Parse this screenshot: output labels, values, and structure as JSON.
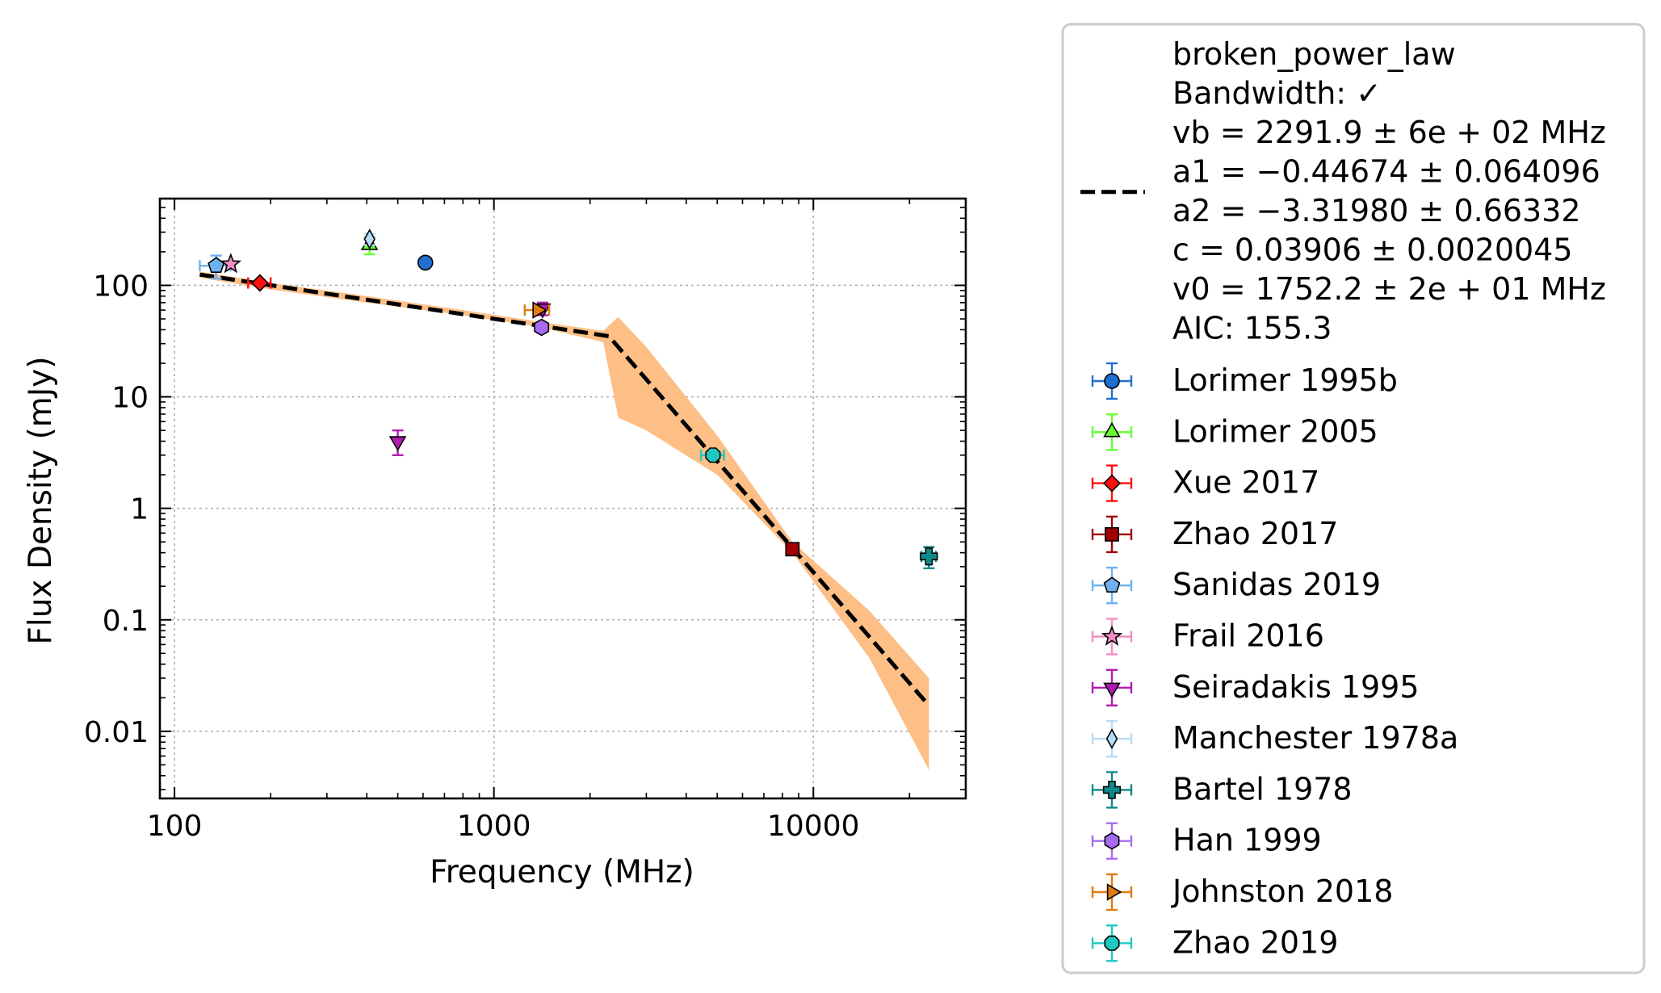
{
  "chart_data": {
    "type": "scatter",
    "xlabel": "Frequency (MHz)",
    "ylabel": "Flux Density (mJy)",
    "xscale": "log",
    "yscale": "log",
    "xlim": [
      90,
      30000
    ],
    "ylim": [
      0.0025,
      600
    ],
    "xticks": [
      100,
      1000,
      10000
    ],
    "xtick_labels": [
      "100",
      "1000",
      "10000"
    ],
    "yticks": [
      0.01,
      0.1,
      1,
      10,
      100
    ],
    "ytick_labels": [
      "0.01",
      "0.1",
      "1",
      "10",
      "100"
    ],
    "grid": true,
    "legend_placement": "outside-right",
    "fit": {
      "name": "broken_power_law",
      "legend_lines": [
        "broken_power_law",
        "Bandwidth: ✓",
        "vb = 2291.9 ± 6e + 02 MHz",
        "a1 = −0.44674 ± 0.064096",
        "a2 = −3.31980 ± 0.66332",
        "c = 0.03906 ± 0.0020045",
        "v0 = 1752.2 ± 2e + 01 MHz",
        "AIC: 155.3"
      ],
      "color": "#000000",
      "band_color": "#fdbf86",
      "line_x": [
        120,
        2290,
        23000
      ],
      "line_y": [
        125,
        35,
        0.017
      ],
      "band_upper_x": [
        120,
        200,
        400,
        800,
        1400,
        2200,
        2450,
        3000,
        5000,
        8600,
        15000,
        23000
      ],
      "band_upper_y": [
        133,
        105,
        80,
        60,
        47,
        39,
        52,
        28,
        4.5,
        0.5,
        0.12,
        0.03
      ],
      "band_lower_x": [
        120,
        200,
        400,
        800,
        1400,
        2200,
        2450,
        3000,
        5000,
        8600,
        15000,
        23000
      ],
      "band_lower_y": [
        117,
        92,
        70,
        54,
        42,
        31,
        6.5,
        5.0,
        2.0,
        0.4,
        0.045,
        0.0045
      ]
    },
    "series": [
      {
        "name": "Lorimer 1995b",
        "marker": "circle",
        "color": "#1f6fd1",
        "points": [
          {
            "x": 610,
            "y": 160
          }
        ]
      },
      {
        "name": "Lorimer 2005",
        "marker": "triangle-up",
        "color": "#66ff33",
        "points": [
          {
            "x": 408,
            "y": 230,
            "yerr": 40
          }
        ]
      },
      {
        "name": "Xue 2017",
        "marker": "diamond",
        "color": "#ff1010",
        "points": [
          {
            "x": 185,
            "y": 105,
            "xerr": 15
          }
        ]
      },
      {
        "name": "Zhao 2017",
        "marker": "square",
        "color": "#a00000",
        "points": [
          {
            "x": 8600,
            "y": 0.43
          }
        ]
      },
      {
        "name": "Sanidas 2019",
        "marker": "pentagon",
        "color": "#6fb0f0",
        "points": [
          {
            "x": 135,
            "y": 150,
            "xerr": 15,
            "yerr": 35
          }
        ]
      },
      {
        "name": "Frail 2016",
        "marker": "star",
        "color": "#f58ec3",
        "points": [
          {
            "x": 150,
            "y": 155
          }
        ]
      },
      {
        "name": "Seiradakis 1995",
        "marker": "triangle-down",
        "color": "#b01cb0",
        "points": [
          {
            "x": 500,
            "y": 4.0,
            "yerr": 1.0
          },
          {
            "x": 1420,
            "y": 62,
            "yerr": 8
          }
        ]
      },
      {
        "name": "Manchester 1978a",
        "marker": "thin-diamond",
        "color": "#b8dcf5",
        "points": [
          {
            "x": 408,
            "y": 260,
            "yerr": 30
          }
        ]
      },
      {
        "name": "Bartel 1978",
        "marker": "plus",
        "color": "#0f8a8a",
        "points": [
          {
            "x": 23000,
            "y": 0.37,
            "xerr": 1200,
            "yerr": 0.08
          }
        ]
      },
      {
        "name": "Han 1999",
        "marker": "hexagon",
        "color": "#a66bf0",
        "points": [
          {
            "x": 1410,
            "y": 42
          }
        ]
      },
      {
        "name": "Johnston 2018",
        "marker": "triangle-right",
        "color": "#e07b10",
        "points": [
          {
            "x": 1369,
            "y": 60,
            "xerr": 120
          }
        ]
      },
      {
        "name": "Zhao 2019",
        "marker": "octagon",
        "color": "#20c8c0",
        "points": [
          {
            "x": 4850,
            "y": 3.0,
            "xerr": 400
          }
        ]
      }
    ]
  }
}
